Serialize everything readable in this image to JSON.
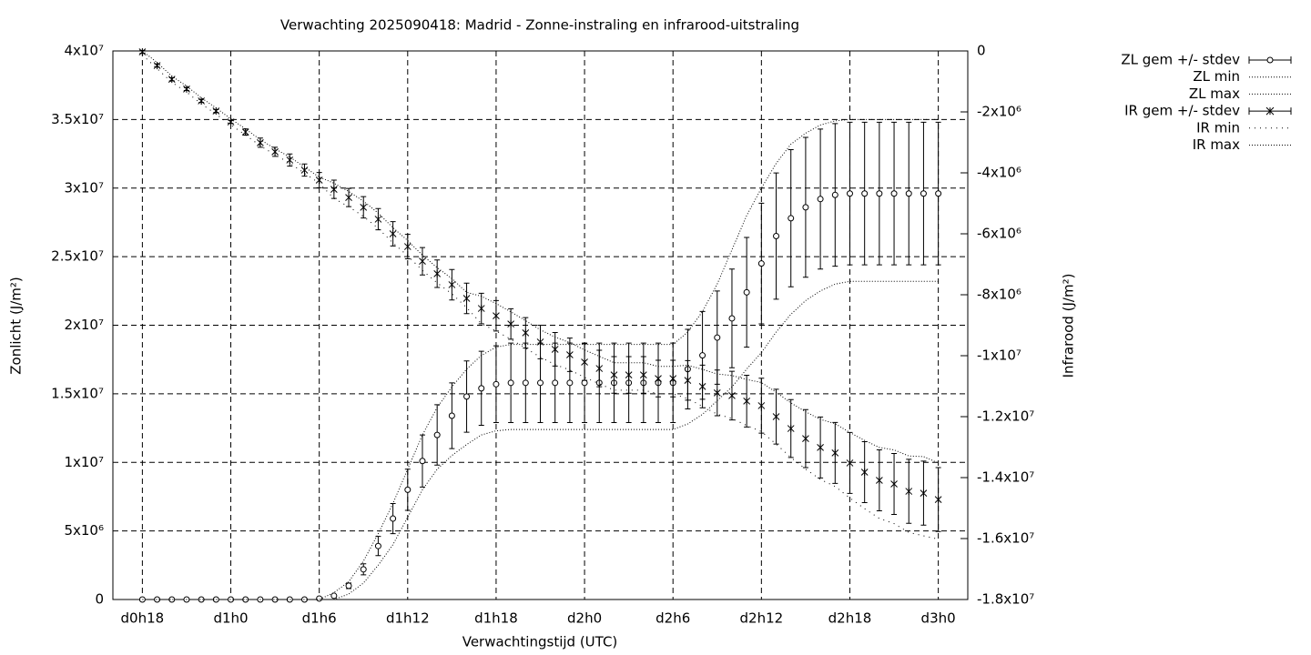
{
  "chart_data": {
    "type": "errorbar",
    "title": "Verwachting 2025090418: Madrid - Zonne-instraling en infrarood-uitstraling",
    "xlabel": "Verwachtingstijd (UTC)",
    "ylabel": "Zonlicht (J/m²)",
    "y2label": "Infrarood (J/m²)",
    "x": [
      18,
      19,
      20,
      21,
      22,
      23,
      24,
      25,
      26,
      27,
      28,
      29,
      30,
      31,
      32,
      33,
      34,
      35,
      36,
      37,
      38,
      39,
      40,
      41,
      42,
      43,
      44,
      45,
      46,
      47,
      48,
      49,
      50,
      51,
      52,
      53,
      54,
      55,
      56,
      57,
      58,
      59,
      60,
      61,
      62,
      63,
      64,
      65,
      66,
      67,
      68,
      69,
      70,
      71,
      72
    ],
    "xlim": [
      16,
      74
    ],
    "xticks": [
      {
        "value": 18,
        "label": "d0h18"
      },
      {
        "value": 24,
        "label": "d1h0"
      },
      {
        "value": 30,
        "label": "d1h6"
      },
      {
        "value": 36,
        "label": "d1h12"
      },
      {
        "value": 42,
        "label": "d1h18"
      },
      {
        "value": 48,
        "label": "d2h0"
      },
      {
        "value": 54,
        "label": "d2h6"
      },
      {
        "value": 60,
        "label": "d2h12"
      },
      {
        "value": 66,
        "label": "d2h18"
      },
      {
        "value": 72,
        "label": "d3h0"
      }
    ],
    "ylim": [
      0,
      40000000
    ],
    "yticks": [
      0,
      {
        "value": 5000000,
        "label": "5x10⁶"
      },
      {
        "value": 10000000,
        "label": "1x10⁷"
      },
      {
        "value": 15000000,
        "label": "1.5x10⁷"
      },
      {
        "value": 20000000,
        "label": "2x10⁷"
      },
      {
        "value": 25000000,
        "label": "2.5x10⁷"
      },
      {
        "value": 30000000,
        "label": "3x10⁷"
      },
      {
        "value": 35000000,
        "label": "3.5x10⁷"
      },
      {
        "value": 40000000,
        "label": "4x10⁷"
      }
    ],
    "y2lim": [
      -18000000,
      0
    ],
    "y2ticks": [
      0,
      {
        "value": -2000000,
        "label": "-2x10⁶"
      },
      {
        "value": -4000000,
        "label": "-4x10⁶"
      },
      {
        "value": -6000000,
        "label": "-6x10⁶"
      },
      {
        "value": -8000000,
        "label": "-8x10⁶"
      },
      {
        "value": -10000000,
        "label": "-1x10⁷"
      },
      {
        "value": -12000000,
        "label": "-1.2x10⁷"
      },
      {
        "value": -14000000,
        "label": "-1.4x10⁷"
      },
      {
        "value": -16000000,
        "label": "-1.6x10⁷"
      },
      {
        "value": -18000000,
        "label": "-1.8x10⁷"
      }
    ],
    "grid": true,
    "legend": "outside-top-right",
    "series": [
      {
        "name": "ZL gem +/- stdev",
        "color": "#000000",
        "marker": "circle",
        "values": [
          0,
          0,
          0,
          0,
          0,
          0,
          0,
          0,
          0,
          0,
          0,
          0,
          70000.0,
          270000.0,
          1000000.0,
          2200000.0,
          3900000.0,
          5900000.0,
          8000000.0,
          10100000.0,
          12000000.0,
          13400000.0,
          14800000.0,
          15400000.0,
          15700000.0,
          15800000.0,
          15800000.0,
          15800000.0,
          15800000.0,
          15800000.0,
          15800000.0,
          15800000.0,
          15800000.0,
          15800000.0,
          15800000.0,
          15800000.0,
          15800000.0,
          16800000.0,
          17800000.0,
          19100000.0,
          20500000.0,
          22400000.0,
          24500000.0,
          26500000.0,
          27800000.0,
          28600000.0,
          29200000.0,
          29500000.0,
          29600000.0,
          29600000.0,
          29600000.0,
          29600000.0,
          29600000.0,
          29600000.0,
          29600000.0
        ],
        "errors": [
          0,
          0,
          0,
          0,
          0,
          0,
          0,
          0,
          0,
          0,
          0,
          0,
          20000.0,
          80000.0,
          200000.0,
          400000.0,
          700000.0,
          1100000.0,
          1500000.0,
          1900000.0,
          2200000.0,
          2400000.0,
          2600000.0,
          2700000.0,
          2800000.0,
          2900000.0,
          2900000.0,
          2900000.0,
          2900000.0,
          2900000.0,
          2900000.0,
          2900000.0,
          2900000.0,
          2900000.0,
          2900000.0,
          2900000.0,
          2900000.0,
          2900000.0,
          3200000.0,
          3400000.0,
          3600000.0,
          4000000.0,
          4400000.0,
          4600000.0,
          5000000.0,
          5100000.0,
          5100000.0,
          5200000.0,
          5200000.0,
          5200000.0,
          5200000.0,
          5200000.0,
          5200000.0,
          5200000.0,
          5200000.0
        ]
      },
      {
        "name": "ZL min",
        "color": "#000000",
        "dash": "dotted",
        "values": [
          0,
          0,
          0,
          0,
          0,
          0,
          0,
          0,
          0,
          0,
          0,
          0,
          0,
          0,
          400000.0,
          1200000.0,
          2500000.0,
          4000000.0,
          6000000.0,
          8000000.0,
          9500000.0,
          10500000.0,
          11300000.0,
          12000000.0,
          12300000.0,
          12400000.0,
          12400000.0,
          12400000.0,
          12400000.0,
          12400000.0,
          12400000.0,
          12400000.0,
          12400000.0,
          12400000.0,
          12400000.0,
          12400000.0,
          12400000.0,
          12800000.0,
          13500000.0,
          14500000.0,
          15500000.0,
          16800000.0,
          18000000.0,
          19500000.0,
          20800000.0,
          21800000.0,
          22500000.0,
          23000000.0,
          23200000.0,
          23200000.0,
          23200000.0,
          23200000.0,
          23200000.0,
          23200000.0,
          23200000.0
        ]
      },
      {
        "name": "ZL max",
        "color": "#000000",
        "dash": "dotted",
        "values": [
          0,
          0,
          0,
          0,
          0,
          0,
          0,
          0,
          0,
          0,
          0,
          0,
          0,
          500000.0,
          1300000.0,
          2800000.0,
          4800000.0,
          7000000.0,
          9500000.0,
          12000000.0,
          14000000.0,
          15500000.0,
          16800000.0,
          17800000.0,
          18400000.0,
          18600000.0,
          18600000.0,
          18600000.0,
          18600000.0,
          18600000.0,
          18600000.0,
          18600000.0,
          18600000.0,
          18600000.0,
          18600000.0,
          18600000.0,
          18600000.0,
          19500000.0,
          21000000.0,
          23000000.0,
          25500000.0,
          28000000.0,
          30000000.0,
          31800000.0,
          33200000.0,
          34000000.0,
          34600000.0,
          34900000.0,
          35000000.0,
          35000000.0,
          35000000.0,
          35000000.0,
          35000000.0,
          35000000.0,
          35000000.0
        ]
      },
      {
        "name": "IR gem +/- stdev",
        "color": "#000000",
        "marker": "star",
        "axis": "y2",
        "values": [
          -30000.0,
          -480000.0,
          -930000.0,
          -1250000.0,
          -1640000.0,
          -1970000.0,
          -2330000.0,
          -2660000.0,
          -3010000.0,
          -3310000.0,
          -3580000.0,
          -3910000.0,
          -4240000.0,
          -4540000.0,
          -4810000.0,
          -5130000.0,
          -5520000.0,
          -6000000.0,
          -6420000.0,
          -6900000.0,
          -7310000.0,
          -7670000.0,
          -8120000.0,
          -8450000.0,
          -8690000.0,
          -8960000.0,
          -9250000.0,
          -9550000.0,
          -9790000.0,
          -9970000.0,
          -10210000.0,
          -10420000.0,
          -10630000.0,
          -10630000.0,
          -10630000.0,
          -10750000.0,
          -10750000.0,
          -10810000.0,
          -11010000.0,
          -11220000.0,
          -11310000.0,
          -11490000.0,
          -11640000.0,
          -12000000.0,
          -12390000.0,
          -12720000.0,
          -13010000.0,
          -13190000.0,
          -13520000.0,
          -13820000.0,
          -14090000.0,
          -14210000.0,
          -14450000.0,
          -14510000.0,
          -14720000.0
        ],
        "errors": [
          50000.0,
          50000.0,
          50000.0,
          50000.0,
          50000.0,
          50000.0,
          50000.0,
          100000.0,
          150000.0,
          150000.0,
          200000.0,
          200000.0,
          250000.0,
          300000.0,
          300000.0,
          350000.0,
          350000.0,
          400000.0,
          400000.0,
          450000.0,
          450000.0,
          500000.0,
          500000.0,
          500000.0,
          500000.0,
          500000.0,
          500000.0,
          550000.0,
          550000.0,
          550000.0,
          600000.0,
          600000.0,
          600000.0,
          600000.0,
          600000.0,
          600000.0,
          600000.0,
          650000.0,
          700000.0,
          750000.0,
          800000.0,
          850000.0,
          900000.0,
          900000.0,
          950000.0,
          950000.0,
          1000000.0,
          1000000.0,
          1000000.0,
          1000000.0,
          1000000.0,
          1000000.0,
          1050000.0,
          1050000.0,
          1050000.0
        ]
      },
      {
        "name": "IR min",
        "color": "#000000",
        "dash": "sparse-dotted",
        "axis": "y2",
        "values": [
          -130000.0,
          -580000.0,
          -1030000.0,
          -1350000.0,
          -1740000.0,
          -2070000.0,
          -2430000.0,
          -2760000.0,
          -3110000.0,
          -3410000.0,
          -3680000.0,
          -4010000.0,
          -4340000.0,
          -4840000.0,
          -5110000.0,
          -5430000.0,
          -5820000.0,
          -6300000.0,
          -6720000.0,
          -7200000.0,
          -7610000.0,
          -7970000.0,
          -8420000.0,
          -8950000.0,
          -9190000.0,
          -9460000.0,
          -9750000.0,
          -10050000.0,
          -10290000.0,
          -10470000.0,
          -10710000.0,
          -10920000.0,
          -11130000.0,
          -11130000.0,
          -11130000.0,
          -11250000.0,
          -11250000.0,
          -11410000.0,
          -11660000.0,
          -11920000.0,
          -12060000.0,
          -12290000.0,
          -12490000.0,
          -12900000.0,
          -13340000.0,
          -13720000.0,
          -14060000.0,
          -14290000.0,
          -14670000.0,
          -15020000.0,
          -15340000.0,
          -15510000.0,
          -15800000.0,
          -15910000.0,
          -16020000.0
        ]
      },
      {
        "name": "IR max",
        "color": "#000000",
        "dash": "dotted",
        "axis": "y2",
        "values": [
          0,
          -380000.0,
          -830000.0,
          -1150000.0,
          -1540000.0,
          -1870000.0,
          -2230000.0,
          -2560000.0,
          -2910000.0,
          -3210000.0,
          -3480000.0,
          -3810000.0,
          -4140000.0,
          -4340000.0,
          -4610000.0,
          -4930000.0,
          -5320000.0,
          -5800000.0,
          -6220000.0,
          -6700000.0,
          -7110000.0,
          -7470000.0,
          -7920000.0,
          -8050000.0,
          -8290000.0,
          -8560000.0,
          -8850000.0,
          -9150000.0,
          -9390000.0,
          -9570000.0,
          -9810000.0,
          -10020000.0,
          -10230000.0,
          -10230000.0,
          -10230000.0,
          -10350000.0,
          -10350000.0,
          -10310000.0,
          -10450000.0,
          -10600000.0,
          -10650000.0,
          -10780000.0,
          -10880000.0,
          -11200000.0,
          -11550000.0,
          -11840000.0,
          -12090000.0,
          -12230000.0,
          -12520000.0,
          -12780000.0,
          -13010000.0,
          -13090000.0,
          -13290000.0,
          -13310000.0,
          -13520000.0
        ]
      }
    ]
  }
}
